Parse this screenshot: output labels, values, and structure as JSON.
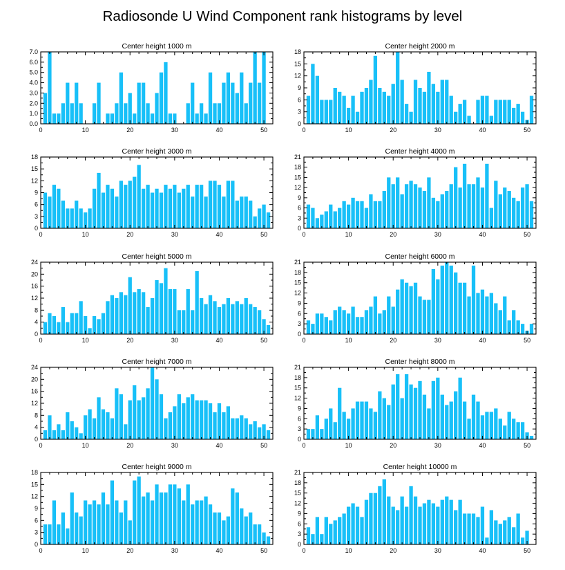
{
  "figure_title": "Radiosonde U Wind Component rank histograms by level",
  "colors": {
    "bar": "#18c0f8",
    "axis": "#000000",
    "background": "#ffffff"
  },
  "chart_data": [
    {
      "type": "bar",
      "title": "Center height 1000 m",
      "xlim": [
        0,
        52
      ],
      "xticks": [
        0,
        10,
        20,
        30,
        40,
        50
      ],
      "ylim": [
        0,
        7.0
      ],
      "yticks": [
        0,
        1,
        2,
        3,
        4,
        5,
        6,
        7
      ],
      "ytick_labels": [
        "0.0",
        "1.0",
        "2.0",
        "3.0",
        "4.0",
        "5.0",
        "6.0",
        "7.0"
      ],
      "x": [
        1,
        2,
        3,
        4,
        5,
        6,
        7,
        8,
        9,
        10,
        11,
        12,
        13,
        14,
        15,
        16,
        17,
        18,
        19,
        20,
        21,
        22,
        23,
        24,
        25,
        26,
        27,
        28,
        29,
        30,
        31,
        32,
        33,
        34,
        35,
        36,
        37,
        38,
        39,
        40,
        41,
        42,
        43,
        44,
        45,
        46,
        47,
        48,
        49,
        50,
        51
      ],
      "values": [
        3,
        7,
        1,
        1,
        2,
        4,
        2,
        4,
        2,
        0,
        0,
        2,
        4,
        0,
        1,
        1,
        2,
        5,
        2,
        3,
        1,
        4,
        4,
        2,
        1,
        3,
        5,
        6,
        1,
        1,
        0,
        0,
        2,
        4,
        1,
        2,
        1,
        5,
        2,
        2,
        4,
        5,
        4,
        3,
        5,
        2,
        4,
        7,
        4,
        7,
        0
      ]
    },
    {
      "type": "bar",
      "title": "Center height 2000 m",
      "xlim": [
        0,
        52
      ],
      "xticks": [
        0,
        10,
        20,
        30,
        40,
        50
      ],
      "ylim": [
        0,
        18
      ],
      "yticks": [
        0,
        3,
        6,
        9,
        12,
        15,
        18
      ],
      "ytick_labels": [
        "0",
        "3",
        "6",
        "9",
        "12",
        "15",
        "18"
      ],
      "x": [
        1,
        2,
        3,
        4,
        5,
        6,
        7,
        8,
        9,
        10,
        11,
        12,
        13,
        14,
        15,
        16,
        17,
        18,
        19,
        20,
        21,
        22,
        23,
        24,
        25,
        26,
        27,
        28,
        29,
        30,
        31,
        32,
        33,
        34,
        35,
        36,
        37,
        38,
        39,
        40,
        41,
        42,
        43,
        44,
        45,
        46,
        47,
        48,
        49,
        50,
        51
      ],
      "values": [
        7,
        15,
        12,
        6,
        6,
        6,
        9,
        8,
        7,
        4,
        7,
        3,
        8,
        9,
        11,
        17,
        9,
        8,
        7,
        10,
        18,
        11,
        5,
        3,
        11,
        9,
        8,
        13,
        10,
        8,
        11,
        11,
        7,
        3,
        5,
        6,
        2,
        0,
        6,
        7,
        7,
        2,
        6,
        6,
        6,
        6,
        4,
        5,
        3,
        1,
        7
      ]
    },
    {
      "type": "bar",
      "title": "Center height 3000 m",
      "xlim": [
        0,
        52
      ],
      "xticks": [
        0,
        10,
        20,
        30,
        40,
        50
      ],
      "ylim": [
        0,
        18
      ],
      "yticks": [
        0,
        3,
        6,
        9,
        12,
        15,
        18
      ],
      "ytick_labels": [
        "0",
        "3",
        "6",
        "9",
        "12",
        "15",
        "18"
      ],
      "x": [
        1,
        2,
        3,
        4,
        5,
        6,
        7,
        8,
        9,
        10,
        11,
        12,
        13,
        14,
        15,
        16,
        17,
        18,
        19,
        20,
        21,
        22,
        23,
        24,
        25,
        26,
        27,
        28,
        29,
        30,
        31,
        32,
        33,
        34,
        35,
        36,
        37,
        38,
        39,
        40,
        41,
        42,
        43,
        44,
        45,
        46,
        47,
        48,
        49,
        50,
        51
      ],
      "values": [
        9,
        8,
        11,
        10,
        7,
        5,
        5,
        7,
        5,
        4,
        5,
        10,
        14,
        9,
        11,
        10,
        8,
        12,
        11,
        12,
        13,
        16,
        10,
        11,
        9,
        10,
        9,
        11,
        10,
        11,
        9,
        10,
        11,
        8,
        11,
        11,
        8,
        12,
        12,
        11,
        8,
        12,
        12,
        7,
        8,
        8,
        7,
        3,
        5,
        6,
        4
      ]
    },
    {
      "type": "bar",
      "title": "Center height 4000 m",
      "xlim": [
        0,
        52
      ],
      "xticks": [
        0,
        10,
        20,
        30,
        40,
        50
      ],
      "ylim": [
        0,
        21
      ],
      "yticks": [
        0,
        3,
        6,
        9,
        12,
        15,
        18,
        21
      ],
      "ytick_labels": [
        "0",
        "3",
        "6",
        "9",
        "12",
        "15",
        "18",
        "21"
      ],
      "x": [
        1,
        2,
        3,
        4,
        5,
        6,
        7,
        8,
        9,
        10,
        11,
        12,
        13,
        14,
        15,
        16,
        17,
        18,
        19,
        20,
        21,
        22,
        23,
        24,
        25,
        26,
        27,
        28,
        29,
        30,
        31,
        32,
        33,
        34,
        35,
        36,
        37,
        38,
        39,
        40,
        41,
        42,
        43,
        44,
        45,
        46,
        47,
        48,
        49,
        50,
        51
      ],
      "values": [
        7,
        6,
        3,
        4,
        5,
        7,
        5,
        6,
        8,
        7,
        9,
        8,
        8,
        6,
        10,
        8,
        8,
        11,
        15,
        13,
        15,
        10,
        13,
        14,
        13,
        12,
        11,
        15,
        9,
        8,
        10,
        11,
        13,
        18,
        12,
        19,
        13,
        13,
        15,
        12,
        19,
        6,
        14,
        10,
        12,
        11,
        9,
        8,
        12,
        13,
        8
      ]
    },
    {
      "type": "bar",
      "title": "Center height 5000 m",
      "xlim": [
        0,
        52
      ],
      "xticks": [
        0,
        10,
        20,
        30,
        40,
        50
      ],
      "ylim": [
        0,
        24
      ],
      "yticks": [
        0,
        4,
        8,
        12,
        16,
        20,
        24
      ],
      "ytick_labels": [
        "0",
        "4",
        "8",
        "12",
        "16",
        "20",
        "24"
      ],
      "x": [
        1,
        2,
        3,
        4,
        5,
        6,
        7,
        8,
        9,
        10,
        11,
        12,
        13,
        14,
        15,
        16,
        17,
        18,
        19,
        20,
        21,
        22,
        23,
        24,
        25,
        26,
        27,
        28,
        29,
        30,
        31,
        32,
        33,
        34,
        35,
        36,
        37,
        38,
        39,
        40,
        41,
        42,
        43,
        44,
        45,
        46,
        47,
        48,
        49,
        50,
        51
      ],
      "values": [
        4,
        7,
        6,
        4,
        9,
        4,
        7,
        7,
        11,
        6,
        2,
        6,
        5,
        7,
        11,
        13,
        12,
        14,
        13,
        19,
        14,
        15,
        14,
        9,
        12,
        18,
        17,
        22,
        15,
        15,
        8,
        8,
        15,
        8,
        21,
        12,
        10,
        13,
        11,
        9,
        10,
        12,
        10,
        11,
        10,
        12,
        10,
        9,
        8,
        5,
        3
      ]
    },
    {
      "type": "bar",
      "title": "Center height 6000 m",
      "xlim": [
        0,
        52
      ],
      "xticks": [
        0,
        10,
        20,
        30,
        40,
        50
      ],
      "ylim": [
        0,
        21
      ],
      "yticks": [
        0,
        3,
        6,
        9,
        12,
        15,
        18,
        21
      ],
      "ytick_labels": [
        "0",
        "3",
        "6",
        "9",
        "12",
        "15",
        "18",
        "21"
      ],
      "x": [
        1,
        2,
        3,
        4,
        5,
        6,
        7,
        8,
        9,
        10,
        11,
        12,
        13,
        14,
        15,
        16,
        17,
        18,
        19,
        20,
        21,
        22,
        23,
        24,
        25,
        26,
        27,
        28,
        29,
        30,
        31,
        32,
        33,
        34,
        35,
        36,
        37,
        38,
        39,
        40,
        41,
        42,
        43,
        44,
        45,
        46,
        47,
        48,
        49,
        50,
        51
      ],
      "values": [
        4,
        3,
        6,
        6,
        5,
        4,
        7,
        8,
        7,
        6,
        8,
        5,
        5,
        7,
        8,
        11,
        6,
        7,
        11,
        8,
        13,
        16,
        15,
        14,
        15,
        11,
        10,
        10,
        19,
        16,
        20,
        21,
        20,
        18,
        15,
        15,
        11,
        20,
        12,
        13,
        11,
        12,
        9,
        7,
        11,
        4,
        7,
        4,
        3,
        1,
        3
      ]
    },
    {
      "type": "bar",
      "title": "Center height 7000 m",
      "xlim": [
        0,
        52
      ],
      "xticks": [
        0,
        10,
        20,
        30,
        40,
        50
      ],
      "ylim": [
        0,
        24
      ],
      "yticks": [
        0,
        4,
        8,
        12,
        16,
        20,
        24
      ],
      "ytick_labels": [
        "0",
        "4",
        "8",
        "12",
        "16",
        "20",
        "24"
      ],
      "x": [
        1,
        2,
        3,
        4,
        5,
        6,
        7,
        8,
        9,
        10,
        11,
        12,
        13,
        14,
        15,
        16,
        17,
        18,
        19,
        20,
        21,
        22,
        23,
        24,
        25,
        26,
        27,
        28,
        29,
        30,
        31,
        32,
        33,
        34,
        35,
        36,
        37,
        38,
        39,
        40,
        41,
        42,
        43,
        44,
        45,
        46,
        47,
        48,
        49,
        50,
        51
      ],
      "values": [
        3,
        8,
        3,
        5,
        3,
        9,
        6,
        4,
        2,
        8,
        10,
        7,
        14,
        10,
        9,
        7,
        17,
        15,
        5,
        13,
        18,
        13,
        14,
        17,
        24,
        20,
        15,
        7,
        9,
        11,
        15,
        12,
        14,
        15,
        13,
        13,
        13,
        12,
        9,
        12,
        9,
        11,
        7,
        7,
        8,
        7,
        5,
        6,
        4,
        5,
        3
      ]
    },
    {
      "type": "bar",
      "title": "Center height 8000 m",
      "xlim": [
        0,
        52
      ],
      "xticks": [
        0,
        10,
        20,
        30,
        40,
        50
      ],
      "ylim": [
        0,
        21
      ],
      "yticks": [
        0,
        3,
        6,
        9,
        12,
        15,
        18,
        21
      ],
      "ytick_labels": [
        "0",
        "3",
        "6",
        "9",
        "12",
        "15",
        "18",
        "21"
      ],
      "x": [
        1,
        2,
        3,
        4,
        5,
        6,
        7,
        8,
        9,
        10,
        11,
        12,
        13,
        14,
        15,
        16,
        17,
        18,
        19,
        20,
        21,
        22,
        23,
        24,
        25,
        26,
        27,
        28,
        29,
        30,
        31,
        32,
        33,
        34,
        35,
        36,
        37,
        38,
        39,
        40,
        41,
        42,
        43,
        44,
        45,
        46,
        47,
        48,
        49,
        50,
        51
      ],
      "values": [
        3,
        3,
        7,
        3,
        6,
        9,
        5,
        15,
        8,
        6,
        9,
        11,
        11,
        11,
        9,
        8,
        14,
        12,
        10,
        16,
        19,
        12,
        19,
        16,
        15,
        17,
        13,
        9,
        17,
        18,
        13,
        10,
        11,
        14,
        18,
        11,
        6,
        13,
        11,
        7,
        8,
        8,
        9,
        6,
        4,
        8,
        6,
        5,
        5,
        2,
        1
      ]
    },
    {
      "type": "bar",
      "title": "Center height 9000 m",
      "xlim": [
        0,
        52
      ],
      "xticks": [
        0,
        10,
        20,
        30,
        40,
        50
      ],
      "ylim": [
        0,
        18
      ],
      "yticks": [
        0,
        3,
        6,
        9,
        12,
        15,
        18
      ],
      "ytick_labels": [
        "0",
        "3",
        "6",
        "9",
        "12",
        "15",
        "18"
      ],
      "x": [
        1,
        2,
        3,
        4,
        5,
        6,
        7,
        8,
        9,
        10,
        11,
        12,
        13,
        14,
        15,
        16,
        17,
        18,
        19,
        20,
        21,
        22,
        23,
        24,
        25,
        26,
        27,
        28,
        29,
        30,
        31,
        32,
        33,
        34,
        35,
        36,
        37,
        38,
        39,
        40,
        41,
        42,
        43,
        44,
        45,
        46,
        47,
        48,
        49,
        50,
        51
      ],
      "values": [
        5,
        5,
        11,
        5,
        8,
        4,
        13,
        8,
        7,
        11,
        10,
        11,
        10,
        13,
        10,
        16,
        11,
        8,
        11,
        6,
        16,
        17,
        12,
        13,
        11,
        15,
        13,
        13,
        15,
        15,
        14,
        11,
        15,
        10,
        11,
        11,
        12,
        10,
        8,
        8,
        6,
        7,
        14,
        13,
        9,
        7,
        8,
        5,
        5,
        3,
        2
      ]
    },
    {
      "type": "bar",
      "title": "Center height 10000 m",
      "xlim": [
        0,
        52
      ],
      "xticks": [
        0,
        10,
        20,
        30,
        40,
        50
      ],
      "ylim": [
        0,
        21
      ],
      "yticks": [
        0,
        3,
        6,
        9,
        12,
        15,
        18,
        21
      ],
      "ytick_labels": [
        "0",
        "3",
        "6",
        "9",
        "12",
        "15",
        "18",
        "21"
      ],
      "x": [
        1,
        2,
        3,
        4,
        5,
        6,
        7,
        8,
        9,
        10,
        11,
        12,
        13,
        14,
        15,
        16,
        17,
        18,
        19,
        20,
        21,
        22,
        23,
        24,
        25,
        26,
        27,
        28,
        29,
        30,
        31,
        32,
        33,
        34,
        35,
        36,
        37,
        38,
        39,
        40,
        41,
        42,
        43,
        44,
        45,
        46,
        47,
        48,
        49,
        50,
        51
      ],
      "values": [
        5,
        3,
        8,
        3,
        8,
        6,
        7,
        8,
        9,
        11,
        12,
        11,
        8,
        13,
        15,
        15,
        17,
        19,
        14,
        11,
        10,
        14,
        11,
        17,
        14,
        11,
        12,
        13,
        12,
        11,
        13,
        14,
        13,
        10,
        13,
        9,
        9,
        9,
        8,
        11,
        2,
        10,
        7,
        6,
        7,
        8,
        5,
        9,
        2,
        4,
        0
      ]
    }
  ]
}
